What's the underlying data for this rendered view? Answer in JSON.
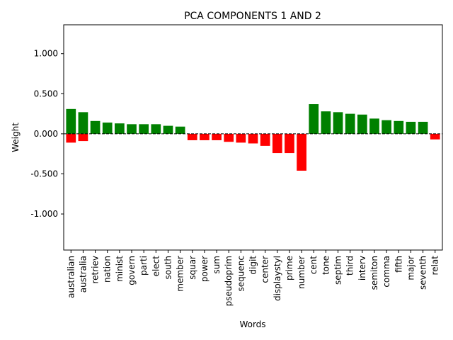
{
  "chart_data": {
    "type": "bar",
    "title": "PCA COMPONENTS 1 AND 2",
    "xlabel": "Words",
    "ylabel": "Weight",
    "ylim": [
      -1.45,
      1.36
    ],
    "yticks": [
      -1.0,
      -0.5,
      0.0,
      0.5,
      1.0
    ],
    "ytick_labels": [
      "-1.000",
      "-0.500",
      "0.000",
      "0.500",
      "1.000"
    ],
    "grid": false,
    "baseline": 0,
    "colors": {
      "positive": "#008000",
      "negative": "#ff0000",
      "baseline": "#000000"
    },
    "categories": [
      "australian",
      "australia",
      "retriev",
      "nation",
      "minist",
      "govern",
      "parti",
      "elect",
      "south",
      "member",
      "squar",
      "power",
      "sum",
      "pseudoprim",
      "sequenc",
      "digit",
      "center",
      "displaystyl",
      "prime",
      "number",
      "cent",
      "tone",
      "septim",
      "third",
      "interv",
      "semiton",
      "comma",
      "fifth",
      "major",
      "seventh",
      "relat"
    ],
    "series": [
      {
        "values": [
          0.31,
          0.27,
          0.16,
          0.14,
          0.13,
          0.12,
          0.12,
          0.12,
          0.1,
          0.09,
          0,
          0,
          0,
          0,
          0,
          0,
          0,
          0,
          0,
          0,
          0.37,
          0.28,
          0.27,
          0.25,
          0.24,
          0.19,
          0.17,
          0.16,
          0.15,
          0.15,
          0
        ]
      },
      {
        "values": [
          -0.11,
          -0.09,
          0,
          0,
          0,
          0,
          0,
          0,
          0,
          0,
          -0.08,
          -0.08,
          -0.08,
          -0.1,
          -0.11,
          -0.12,
          -0.15,
          -0.24,
          -0.24,
          -0.46,
          0,
          0,
          0,
          0,
          0,
          0,
          0,
          0,
          0,
          0,
          -0.07
        ]
      }
    ]
  }
}
